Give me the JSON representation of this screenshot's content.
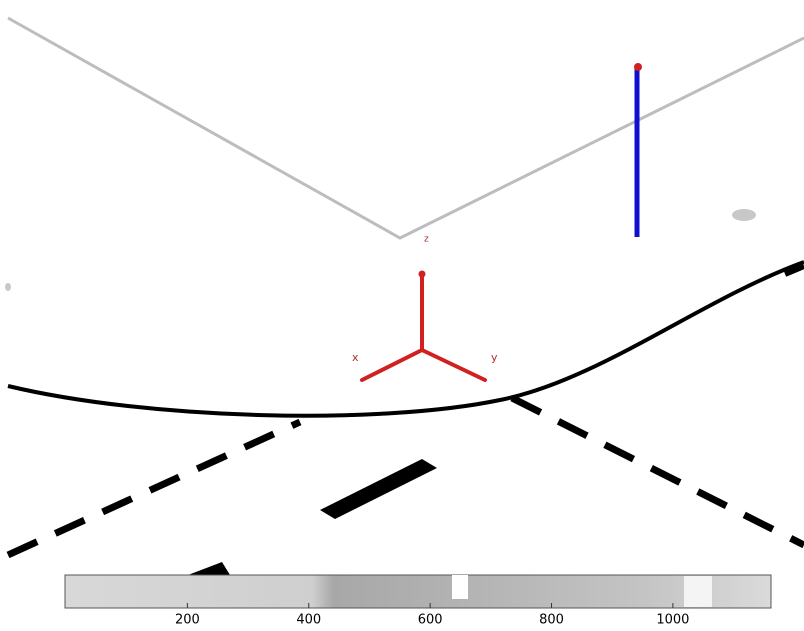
{
  "scene": {
    "axis_labels": {
      "x": "x",
      "y": "y",
      "z": "z"
    }
  },
  "strip_axis": {
    "xlim": [
      0,
      1160
    ],
    "xticks": [
      200,
      400,
      600,
      800,
      1000
    ]
  }
}
